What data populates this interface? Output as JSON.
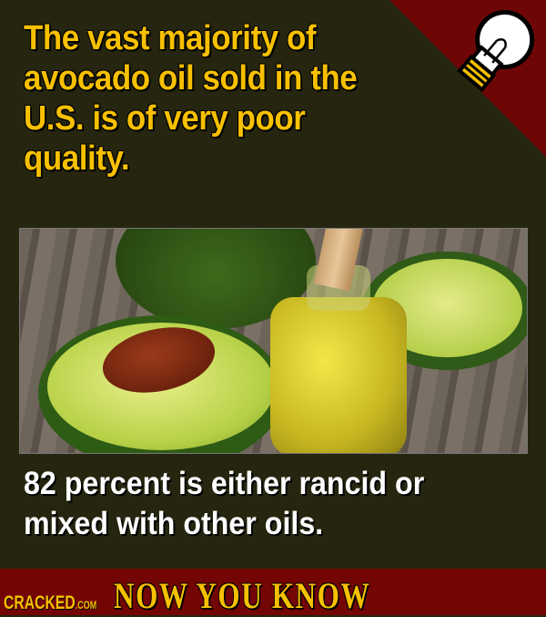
{
  "headline": "The vast majority of avocado oil sold in the U.S. is of very poor quality.",
  "caption": "82 percent is either rancid or mixed with other oils.",
  "footer": {
    "brand": "CRACKED",
    "brand_suffix": ".COM",
    "tagline": "NOW YOU KNOW"
  },
  "icons": {
    "corner": "lightbulb-icon"
  },
  "photo": {
    "subject": "avocado halves and bottle of oil"
  },
  "colors": {
    "background": "#26250f",
    "accent_red": "#730505",
    "headline_yellow": "#f7c000"
  }
}
